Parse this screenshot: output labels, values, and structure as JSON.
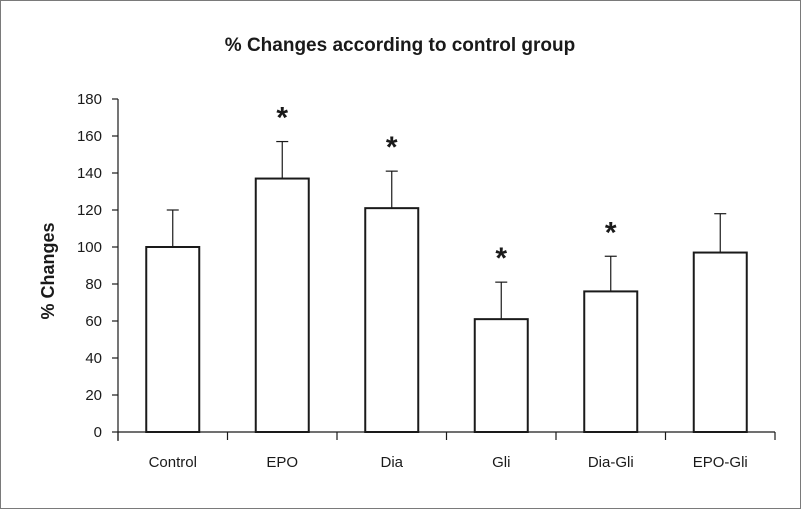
{
  "chart_data": {
    "type": "bar",
    "title": "% Changes according to control group",
    "xlabel": "",
    "ylabel": "% Changes",
    "ylim": [
      0,
      180
    ],
    "yticks": [
      0,
      20,
      40,
      60,
      80,
      100,
      120,
      140,
      160,
      180
    ],
    "categories": [
      "Control",
      "EPO",
      "Dia",
      "Gli",
      "Dia-Gli",
      "EPO-Gli"
    ],
    "values": [
      100,
      137,
      121,
      61,
      76,
      97
    ],
    "error_bars": [
      20,
      20,
      20,
      20,
      19,
      21
    ],
    "significance": [
      "",
      "*",
      "*",
      "*",
      "*",
      ""
    ],
    "bar_fill": "#ffffff",
    "bar_stroke": "#1a1a1a",
    "grid": false,
    "legend": "none"
  }
}
